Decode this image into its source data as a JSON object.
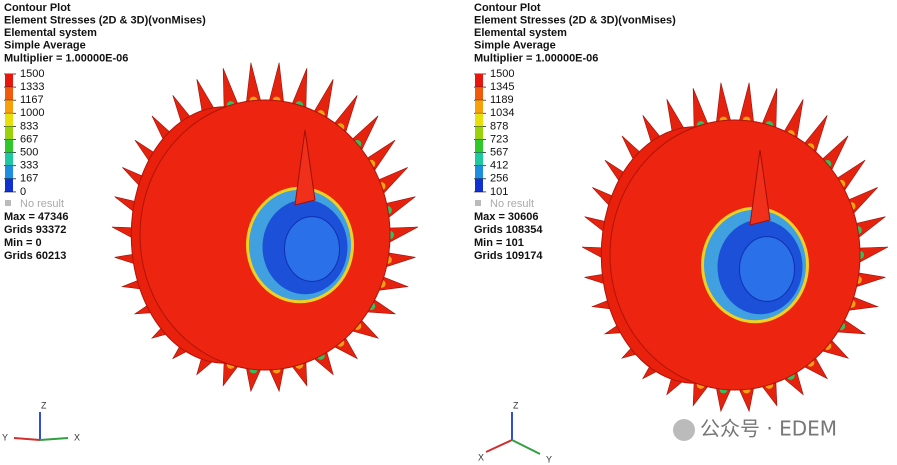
{
  "panels": [
    {
      "header": [
        "Contour Plot",
        "Element Stresses (2D & 3D)(vonMises)",
        "Elemental system",
        "Simple Average",
        "Multiplier = 1.00000E-06"
      ],
      "legend": [
        "1500",
        "1333",
        "1167",
        "1000",
        "833",
        "667",
        "500",
        "333",
        "167",
        "0"
      ],
      "no_result": "No result",
      "stats": [
        "Max = 47346",
        "Grids 93372",
        "Min = 0",
        "Grids 60213"
      ],
      "axes": [
        "Z",
        "Y",
        "X"
      ]
    },
    {
      "header": [
        "Contour Plot",
        "Element Stresses (2D & 3D)(vonMises)",
        "Elemental system",
        "Simple Average",
        "Multiplier = 1.00000E-06"
      ],
      "legend": [
        "1500",
        "1345",
        "1189",
        "1034",
        "878",
        "723",
        "567",
        "412",
        "256",
        "101"
      ],
      "no_result": "No result",
      "stats": [
        "Max = 30606",
        "Grids 108354",
        "Min = 101",
        "Grids 109174"
      ],
      "axes": [
        "Z",
        "X",
        "Y"
      ]
    }
  ],
  "watermark": "公众号 · EDEM"
}
